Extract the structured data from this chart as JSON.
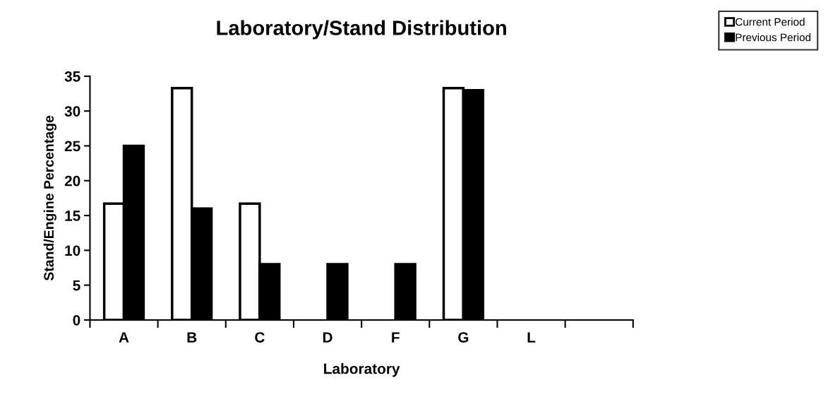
{
  "chart_data": {
    "type": "bar",
    "title": "Laboratory/Stand Distribution",
    "xlabel": "Laboratory",
    "ylabel": "Stand/Engine Percentage",
    "categories": [
      "A",
      "B",
      "C",
      "D",
      "F",
      "G",
      "L",
      null
    ],
    "series": [
      {
        "name": "Current Period",
        "color": "#ffffff",
        "values": [
          16.7,
          33.3,
          16.7,
          null,
          null,
          33.3,
          null,
          null
        ]
      },
      {
        "name": "Previous Period",
        "color": "#000000",
        "values": [
          25,
          16,
          8,
          8,
          8,
          33,
          null,
          null
        ]
      }
    ],
    "ylim": [
      0,
      35
    ],
    "yticks": [
      0,
      5,
      10,
      15,
      20,
      25,
      30,
      35
    ],
    "grid": false,
    "legend": "top right"
  }
}
